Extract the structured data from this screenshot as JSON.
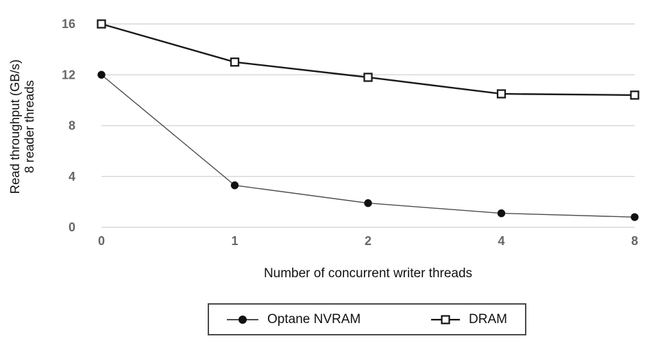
{
  "chart_data": {
    "type": "line",
    "categories": [
      "0",
      "1",
      "2",
      "4",
      "8"
    ],
    "series": [
      {
        "name": "Optane NVRAM",
        "values": [
          12.0,
          3.3,
          1.9,
          1.1,
          0.8
        ],
        "marker": "filled-circle",
        "line_color": "#4d4d4d",
        "marker_color": "#111111",
        "line_width": 1.4
      },
      {
        "name": "DRAM",
        "values": [
          16.0,
          13.0,
          11.8,
          10.5,
          10.4
        ],
        "marker": "open-square",
        "line_color": "#1a1a1a",
        "marker_color": "#1a1a1a",
        "line_width": 2.4
      }
    ],
    "title": "",
    "xlabel": "Number of concurrent writer threads",
    "ylabel_line1": "Read throughput (GB/s)",
    "ylabel_line2": "8 reader threads",
    "yticks": [
      0,
      4,
      8,
      12,
      16
    ],
    "ylim": [
      0,
      16
    ],
    "x_scale": "categorical",
    "grid": "horizontal",
    "gridline_color": "#d9d9d9",
    "tick_label_color": "#666666",
    "legend_position": "bottom-boxed"
  }
}
